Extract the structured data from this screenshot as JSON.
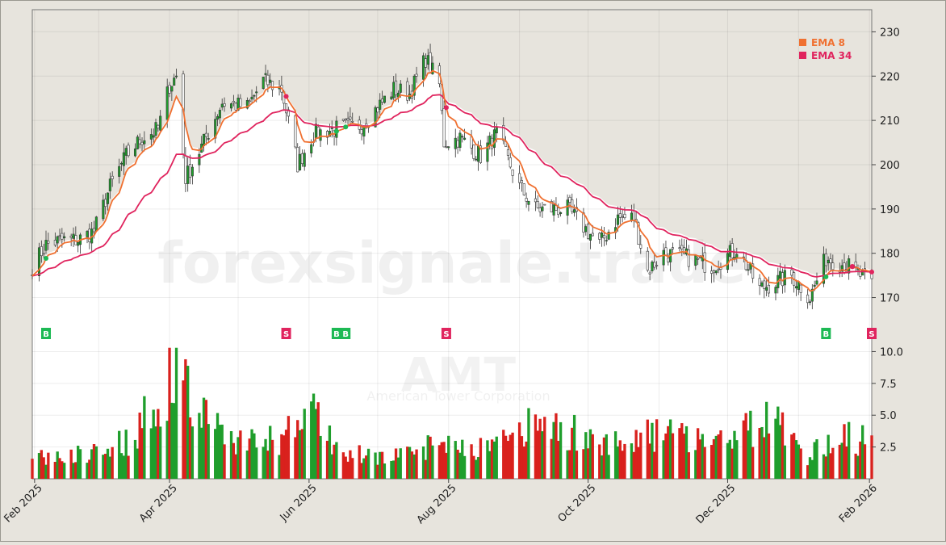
{
  "watermark": {
    "site": "forexsignale.trade",
    "symbol": "AMT",
    "company": "American Tower Corporation"
  },
  "colors": {
    "background": "#e7e4dd",
    "plot": "#ffffff",
    "ema8": "#f07030",
    "ema34": "#e0245e",
    "buy": "#1db954",
    "sell": "#e0245e",
    "volume_up": "#1f9e2c",
    "volume_down": "#d9211d"
  },
  "chart_data": [
    {
      "type": "candlestick",
      "title": "",
      "x_range": [
        "2025-01-31",
        "2026-02-02"
      ],
      "xticks": [
        "Feb 2025",
        "Apr 2025",
        "Jun 2025",
        "Aug 2025",
        "Oct 2025",
        "Dec 2025",
        "Feb 2026"
      ],
      "y_ticks": [
        170,
        180,
        190,
        200,
        210,
        220,
        230
      ],
      "ylim": [
        167,
        235
      ],
      "y_axis_side": "right",
      "grid": true,
      "legend_position": "top-right",
      "series": [
        {
          "name": "EMA 8",
          "key": "ema8"
        },
        {
          "name": "EMA 34",
          "key": "ema34"
        }
      ],
      "price_path": [
        [
          "2025-01-31",
          177
        ],
        [
          "2025-02-06",
          182
        ],
        [
          "2025-02-13",
          183
        ],
        [
          "2025-02-20",
          183
        ],
        [
          "2025-02-27",
          185
        ],
        [
          "2025-03-06",
          195
        ],
        [
          "2025-03-13",
          202
        ],
        [
          "2025-03-20",
          206
        ],
        [
          "2025-03-27",
          208
        ],
        [
          "2025-04-01",
          218
        ],
        [
          "2025-04-04",
          220
        ],
        [
          "2025-04-08",
          197
        ],
        [
          "2025-04-15",
          204
        ],
        [
          "2025-04-24",
          214
        ],
        [
          "2025-05-05",
          213
        ],
        [
          "2025-05-12",
          219
        ],
        [
          "2025-05-20",
          217
        ],
        [
          "2025-05-27",
          200
        ],
        [
          "2025-06-03",
          207
        ],
        [
          "2025-06-12",
          208
        ],
        [
          "2025-06-24",
          209
        ],
        [
          "2025-07-08",
          217
        ],
        [
          "2025-07-15",
          216
        ],
        [
          "2025-07-22",
          224
        ],
        [
          "2025-07-28",
          218
        ],
        [
          "2025-07-30",
          205
        ],
        [
          "2025-08-06",
          206
        ],
        [
          "2025-08-15",
          202
        ],
        [
          "2025-08-22",
          207
        ],
        [
          "2025-09-01",
          195
        ],
        [
          "2025-09-08",
          190
        ],
        [
          "2025-09-22",
          190
        ],
        [
          "2025-10-06",
          182
        ],
        [
          "2025-10-14",
          188
        ],
        [
          "2025-10-21",
          188
        ],
        [
          "2025-10-27",
          176
        ],
        [
          "2025-11-03",
          180
        ],
        [
          "2025-11-14",
          179
        ],
        [
          "2025-11-24",
          177
        ],
        [
          "2025-12-05",
          181
        ],
        [
          "2025-12-15",
          172
        ],
        [
          "2025-12-29",
          175
        ],
        [
          "2026-01-06",
          170
        ],
        [
          "2026-01-13",
          179
        ],
        [
          "2026-01-23",
          177
        ],
        [
          "2026-02-02",
          173
        ]
      ],
      "ema8_last": 176.9,
      "ema34_last": 177.0
    },
    {
      "type": "signals",
      "series": [
        {
          "name": "B"
        },
        {
          "name": "S"
        }
      ],
      "signals": [
        [
          "2025-02-06",
          "B"
        ],
        [
          "2025-05-22",
          "S"
        ],
        [
          "2025-06-13",
          "B"
        ],
        [
          "2025-06-17",
          "B"
        ],
        [
          "2025-07-31",
          "S"
        ],
        [
          "2026-01-13",
          "B"
        ],
        [
          "2026-02-02",
          "S"
        ]
      ]
    },
    {
      "type": "bar",
      "y_ticks": [
        2.5,
        5.0,
        7.5,
        10.0
      ],
      "ylim": [
        0,
        10.6
      ],
      "volume_profile": [
        [
          "2025-02-15",
          1.8
        ],
        [
          "2025-03-15",
          3.2
        ],
        [
          "2025-04-07",
          9.8
        ],
        [
          "2025-04-10",
          6.2
        ],
        [
          "2025-05-01",
          3.1
        ],
        [
          "2025-05-20",
          3.2
        ],
        [
          "2025-06-02",
          5.8
        ],
        [
          "2025-06-15",
          2.0
        ],
        [
          "2025-07-15",
          1.9
        ],
        [
          "2025-07-28",
          3.3
        ],
        [
          "2025-08-15",
          2.5
        ],
        [
          "2025-09-10",
          4.6
        ],
        [
          "2025-10-10",
          3.0
        ],
        [
          "2025-11-01",
          3.7
        ],
        [
          "2025-12-01",
          3.5
        ],
        [
          "2025-12-20",
          4.8
        ],
        [
          "2026-01-05",
          1.9
        ],
        [
          "2026-01-20",
          3.6
        ],
        [
          "2026-02-02",
          3.0
        ]
      ]
    }
  ]
}
